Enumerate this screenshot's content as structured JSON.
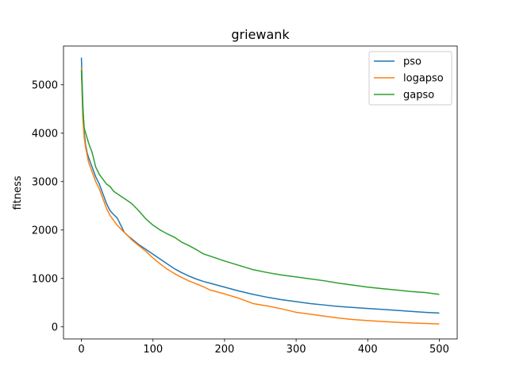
{
  "chart_data": {
    "type": "line",
    "title": "griewank",
    "xlabel": "",
    "ylabel": "fitness",
    "xlim": [
      -25,
      525
    ],
    "ylim": [
      -250,
      5800
    ],
    "xticks": [
      0,
      100,
      200,
      300,
      400,
      500
    ],
    "yticks": [
      0,
      1000,
      2000,
      3000,
      4000,
      5000
    ],
    "grid": false,
    "legend_position": "upper right",
    "series": [
      {
        "name": "pso",
        "color": "#1f77b4",
        "x": [
          0,
          2,
          4,
          6,
          8,
          10,
          15,
          20,
          25,
          30,
          35,
          40,
          45,
          50,
          55,
          60,
          65,
          70,
          80,
          90,
          100,
          110,
          120,
          130,
          140,
          150,
          160,
          170,
          180,
          200,
          220,
          240,
          260,
          280,
          300,
          320,
          340,
          360,
          380,
          400,
          420,
          440,
          460,
          480,
          500
        ],
        "y": [
          5560,
          4600,
          4000,
          3750,
          3600,
          3500,
          3300,
          3100,
          2950,
          2750,
          2550,
          2400,
          2320,
          2250,
          2100,
          1950,
          1880,
          1820,
          1700,
          1600,
          1500,
          1400,
          1300,
          1200,
          1120,
          1050,
          990,
          940,
          900,
          820,
          740,
          670,
          610,
          560,
          520,
          480,
          450,
          420,
          400,
          380,
          360,
          340,
          320,
          300,
          285
        ]
      },
      {
        "name": "logapso",
        "color": "#ff7f0e",
        "x": [
          0,
          2,
          4,
          6,
          8,
          10,
          15,
          20,
          25,
          30,
          35,
          40,
          45,
          50,
          55,
          60,
          65,
          70,
          80,
          90,
          100,
          110,
          120,
          130,
          140,
          150,
          160,
          170,
          180,
          200,
          220,
          240,
          260,
          280,
          300,
          320,
          340,
          360,
          380,
          400,
          420,
          440,
          460,
          480,
          500
        ],
        "y": [
          5350,
          4300,
          3900,
          3700,
          3550,
          3400,
          3200,
          3000,
          2850,
          2650,
          2450,
          2300,
          2200,
          2100,
          2020,
          1950,
          1880,
          1800,
          1680,
          1560,
          1420,
          1300,
          1190,
          1100,
          1020,
          950,
          890,
          830,
          760,
          680,
          590,
          480,
          430,
          370,
          300,
          260,
          220,
          180,
          150,
          130,
          110,
          95,
          80,
          70,
          60
        ]
      },
      {
        "name": "gapso",
        "color": "#2ca02c",
        "x": [
          0,
          2,
          4,
          6,
          8,
          10,
          15,
          20,
          25,
          30,
          35,
          40,
          45,
          50,
          55,
          60,
          65,
          70,
          80,
          90,
          100,
          110,
          120,
          130,
          140,
          150,
          160,
          170,
          180,
          200,
          220,
          240,
          260,
          280,
          300,
          320,
          340,
          360,
          380,
          400,
          420,
          440,
          460,
          480,
          500
        ],
        "y": [
          5300,
          4500,
          4100,
          4000,
          3900,
          3800,
          3600,
          3300,
          3150,
          3050,
          2950,
          2900,
          2800,
          2750,
          2700,
          2650,
          2600,
          2550,
          2400,
          2230,
          2100,
          2000,
          1920,
          1850,
          1750,
          1680,
          1600,
          1510,
          1460,
          1360,
          1270,
          1180,
          1120,
          1070,
          1030,
          990,
          950,
          900,
          860,
          820,
          790,
          760,
          730,
          710,
          670
        ]
      }
    ]
  }
}
